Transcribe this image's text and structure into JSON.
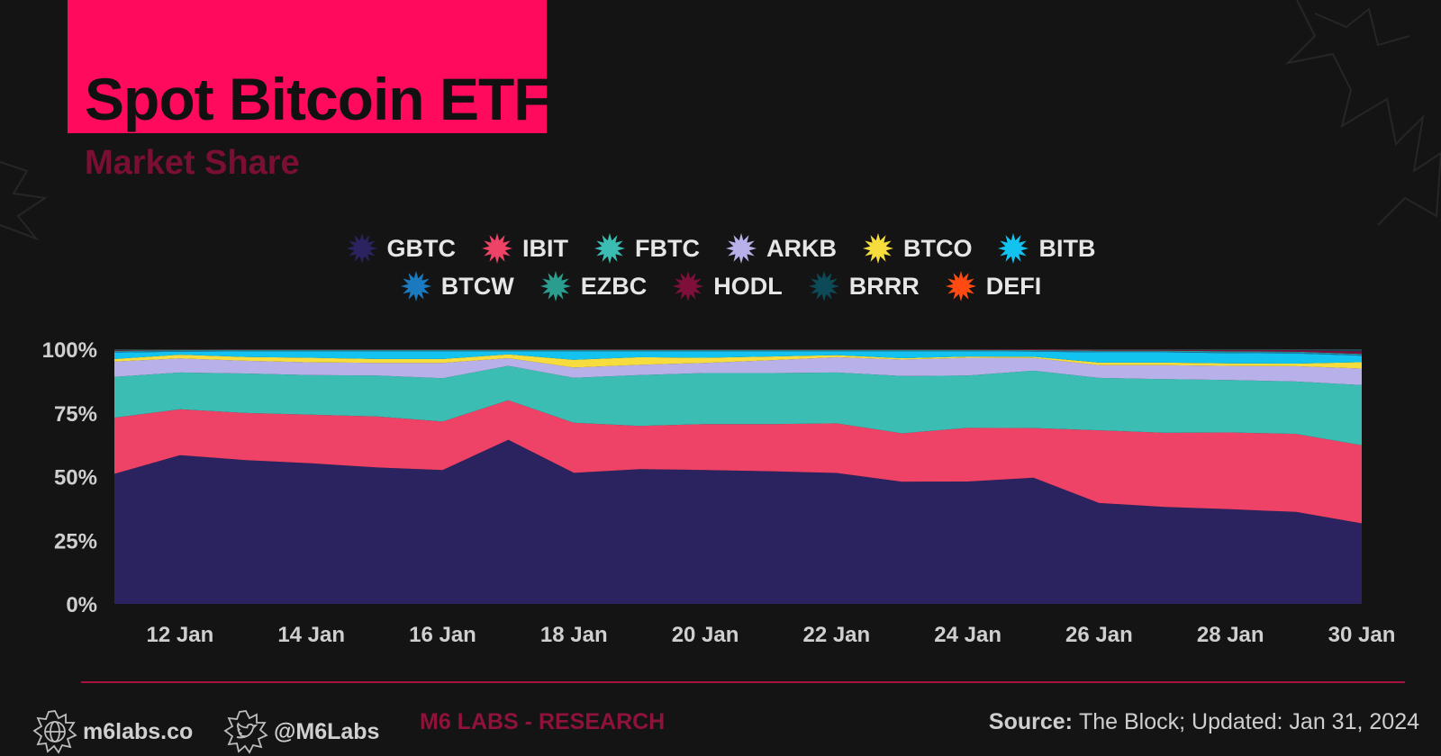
{
  "header": {
    "title": "Spot Bitcoin ETF",
    "subtitle": "Market Share",
    "title_bg_color": "#ff0a5c",
    "subtitle_color": "#7a0f33"
  },
  "legend": {
    "row1": [
      {
        "label": "GBTC",
        "color": "#2b235f"
      },
      {
        "label": "IBIT",
        "color": "#ee4266"
      },
      {
        "label": "FBTC",
        "color": "#3bbdb3"
      },
      {
        "label": "ARKB",
        "color": "#b8b0e8"
      },
      {
        "label": "BTCO",
        "color": "#f7dc3e"
      },
      {
        "label": "BITB",
        "color": "#12c3f0"
      }
    ],
    "row2": [
      {
        "label": "BTCW",
        "color": "#1b7abf"
      },
      {
        "label": "EZBC",
        "color": "#2a9d8f"
      },
      {
        "label": "HODL",
        "color": "#7d0f3a"
      },
      {
        "label": "BRRR",
        "color": "#0d4a57"
      },
      {
        "label": "DEFI",
        "color": "#ff4b12"
      }
    ]
  },
  "chart_data": {
    "type": "area",
    "stacked": true,
    "normalized_percent": true,
    "x": [
      "11 Jan",
      "12 Jan",
      "13 Jan",
      "14 Jan",
      "15 Jan",
      "16 Jan",
      "17 Jan",
      "18 Jan",
      "19 Jan",
      "20 Jan",
      "21 Jan",
      "22 Jan",
      "23 Jan",
      "24 Jan",
      "25 Jan",
      "26 Jan",
      "27 Jan",
      "28 Jan",
      "29 Jan",
      "30 Jan"
    ],
    "x_tick_labels": [
      "12 Jan",
      "14 Jan",
      "16 Jan",
      "18 Jan",
      "20 Jan",
      "22 Jan",
      "24 Jan",
      "26 Jan",
      "28 Jan",
      "30 Jan"
    ],
    "y_tick_labels": [
      "0%",
      "25%",
      "50%",
      "75%",
      "100%"
    ],
    "ylim": [
      0,
      100
    ],
    "series": [
      {
        "name": "GBTC",
        "color": "#2b235f",
        "values": [
          51,
          58.5,
          56.5,
          55,
          53.5,
          52.5,
          64.5,
          51,
          53,
          52.5,
          52,
          51.5,
          48,
          48,
          49.5,
          39.5,
          38,
          37,
          36,
          31.5
        ]
      },
      {
        "name": "IBIT",
        "color": "#ee4266",
        "values": [
          22,
          18,
          18.5,
          19,
          20,
          19,
          15.5,
          19.5,
          17,
          18,
          18.5,
          19.5,
          19,
          21,
          19.5,
          28.5,
          29,
          30,
          30.5,
          30.5
        ]
      },
      {
        "name": "FBTC",
        "color": "#3bbdb3",
        "values": [
          16,
          14.5,
          15.5,
          15.5,
          16,
          17,
          13.5,
          17.5,
          20,
          20,
          20,
          20,
          22.5,
          20.5,
          22.5,
          20.5,
          21,
          20.5,
          20.5,
          23.5
        ]
      },
      {
        "name": "ARKB",
        "color": "#b8b0e8",
        "values": [
          6,
          5.5,
          5,
          5,
          5,
          6,
          3,
          4,
          4,
          4,
          5,
          6,
          6.5,
          7,
          5,
          5,
          5.5,
          5.5,
          6,
          6.5
        ]
      },
      {
        "name": "BTCO",
        "color": "#f7dc3e",
        "values": [
          1,
          1.5,
          1.5,
          1.8,
          1.5,
          1.5,
          1.5,
          3,
          3,
          2,
          1.5,
          0.8,
          0.5,
          0.5,
          0.5,
          1,
          1,
          1,
          1,
          2.5
        ]
      },
      {
        "name": "BITB",
        "color": "#12c3f0",
        "values": [
          2.5,
          1.2,
          2.2,
          2.5,
          3,
          3,
          1.2,
          3.3,
          2.3,
          2.5,
          2,
          1.5,
          2.7,
          2,
          2,
          4,
          4,
          4,
          4,
          2.5
        ]
      },
      {
        "name": "BTCW",
        "color": "#1b7abf",
        "values": [
          0.3,
          0.3,
          0.3,
          0.3,
          0.3,
          0.3,
          0.3,
          0.3,
          0.3,
          0.3,
          0.3,
          0.3,
          0.3,
          0.3,
          0.3,
          0.3,
          0.3,
          0.3,
          0.3,
          0.3
        ]
      },
      {
        "name": "EZBC",
        "color": "#2a9d8f",
        "values": [
          0.4,
          0.3,
          0.3,
          0.3,
          0.3,
          0.3,
          0.3,
          0.3,
          0.3,
          0.3,
          0.3,
          0.3,
          0.3,
          0.3,
          0.3,
          0.4,
          0.4,
          0.4,
          0.4,
          0.4
        ]
      },
      {
        "name": "HODL",
        "color": "#7d0f3a",
        "values": [
          0.3,
          0.1,
          0.1,
          0.1,
          0.1,
          0.1,
          0.1,
          0.1,
          0.1,
          0.1,
          0.1,
          0.1,
          0.1,
          0.1,
          0.2,
          0.3,
          0.3,
          0.5,
          0.6,
          1.0
        ]
      },
      {
        "name": "BRRR",
        "color": "#0d4a57",
        "values": [
          0.3,
          0.2,
          0.1,
          0.1,
          0.1,
          0.1,
          0.1,
          0.1,
          0.1,
          0.1,
          0.1,
          0.1,
          0.1,
          0.1,
          0.1,
          0.2,
          0.2,
          0.3,
          0.3,
          0.8
        ]
      },
      {
        "name": "DEFI",
        "color": "#ff4b12",
        "values": [
          0.05,
          0.05,
          0.05,
          0.05,
          0.05,
          0.05,
          0.05,
          0.05,
          0.05,
          0.05,
          0.05,
          0.05,
          0.05,
          0.05,
          0.05,
          0.05,
          0.05,
          0.05,
          0.05,
          0.05
        ]
      }
    ]
  },
  "footer": {
    "website": "m6labs.co",
    "twitter": "@M6Labs",
    "brand": "M6 LABS - RESEARCH",
    "source_label": "Source:",
    "source_text": "The Block; Updated: Jan 31, 2024",
    "accent_color": "#a8123f"
  }
}
